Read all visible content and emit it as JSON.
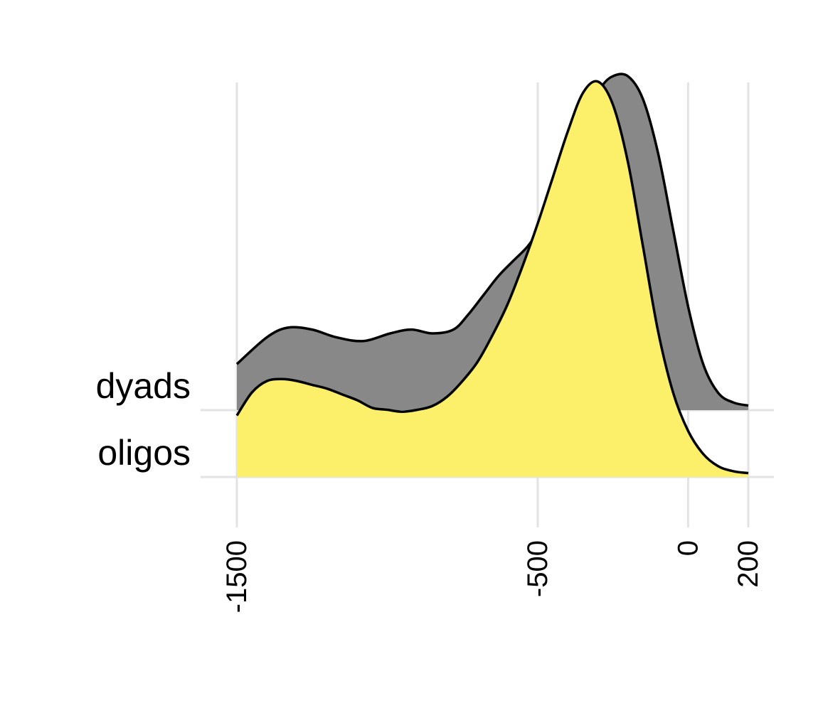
{
  "chart_data": {
    "type": "area",
    "subtype": "ridgeline-density",
    "title": "",
    "xlabel": "",
    "ylabel": "",
    "xlim": [
      -1500,
      200
    ],
    "x_ticks": [
      -1500,
      -500,
      0,
      200
    ],
    "x_tick_labels": [
      "-1500",
      "-500",
      "0",
      "200"
    ],
    "grid": true,
    "legend": "none",
    "series": [
      {
        "name": "dyads",
        "fill": "#888888",
        "x": [
          -1500,
          -1400,
          -1330,
          -1250,
          -1170,
          -1080,
          -990,
          -920,
          -850,
          -780,
          -730,
          -680,
          -630,
          -580,
          -530,
          -480,
          -430,
          -380,
          -330,
          -290,
          -250,
          -200,
          -150,
          -100,
          -50,
          0,
          50,
          100,
          150,
          200
        ],
        "y": [
          0.12,
          0.19,
          0.215,
          0.21,
          0.19,
          0.18,
          0.2,
          0.21,
          0.2,
          0.21,
          0.25,
          0.3,
          0.35,
          0.39,
          0.43,
          0.49,
          0.57,
          0.67,
          0.77,
          0.84,
          0.87,
          0.87,
          0.81,
          0.67,
          0.47,
          0.27,
          0.12,
          0.045,
          0.02,
          0.012
        ]
      },
      {
        "name": "oligos",
        "fill": "#FCEF69",
        "x": [
          -1500,
          -1450,
          -1400,
          -1350,
          -1300,
          -1250,
          -1200,
          -1150,
          -1100,
          -1050,
          -1000,
          -950,
          -900,
          -850,
          -800,
          -750,
          -700,
          -650,
          -600,
          -550,
          -500,
          -450,
          -400,
          -350,
          -300,
          -250,
          -200,
          -150,
          -100,
          -50,
          0,
          50,
          100,
          150,
          200
        ],
        "y": [
          0.16,
          0.22,
          0.25,
          0.255,
          0.25,
          0.24,
          0.23,
          0.215,
          0.2,
          0.18,
          0.175,
          0.17,
          0.175,
          0.185,
          0.21,
          0.25,
          0.3,
          0.37,
          0.45,
          0.55,
          0.66,
          0.78,
          0.9,
          1.0,
          1.03,
          0.97,
          0.82,
          0.6,
          0.38,
          0.22,
          0.12,
          0.06,
          0.028,
          0.015,
          0.01
        ]
      }
    ]
  }
}
